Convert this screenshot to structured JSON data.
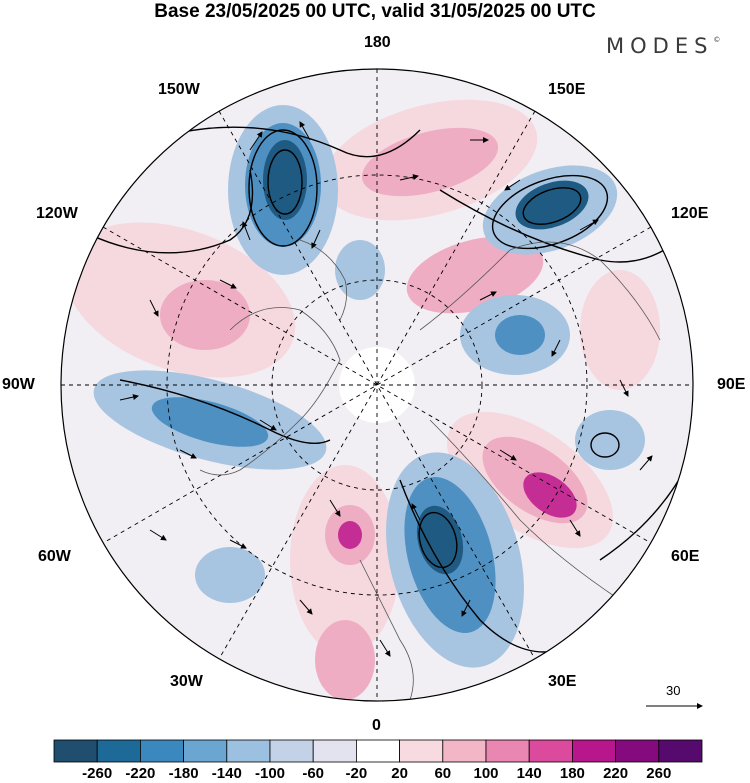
{
  "title": "Base 23/05/2025 00 UTC, valid 31/05/2025 00 UTC",
  "brand": "MODES",
  "brand_mark": "©",
  "longitude_labels": {
    "top": "180",
    "top_left": "150W",
    "top_right": "150E",
    "upper_left": "120W",
    "upper_right": "120E",
    "left": "90W",
    "right": "90E",
    "lower_left": "60W",
    "lower_right": "60E",
    "bottom_left": "30W",
    "bottom_right": "30E",
    "bottom": "0"
  },
  "reference_vector": {
    "label": "30"
  },
  "colorbar": {
    "ticks": [
      "-260",
      "-220",
      "-180",
      "-140",
      "-100",
      "-60",
      "-20",
      "20",
      "60",
      "100",
      "140",
      "180",
      "220",
      "260"
    ],
    "colors": [
      "#1f4e6e",
      "#1d6a99",
      "#3a88bd",
      "#6aa6d1",
      "#9cc0df",
      "#c3d2e7",
      "#e3e2ef",
      "#ffffff",
      "#f8dbe0",
      "#f2b6c6",
      "#ea86b2",
      "#dc4a9e",
      "#b8168c",
      "#850a7d",
      "#560a6e"
    ]
  },
  "map_colors": {
    "neg_strong": "#1f5a82",
    "neg_mid": "#4f90c2",
    "neg_weak": "#a7c4e1",
    "neg_faint": "#d6dbeb",
    "pos_faint": "#f6d8df",
    "pos_weak": "#efadc3",
    "pos_mid": "#e374ad",
    "pos_strong": "#c42d94"
  }
}
